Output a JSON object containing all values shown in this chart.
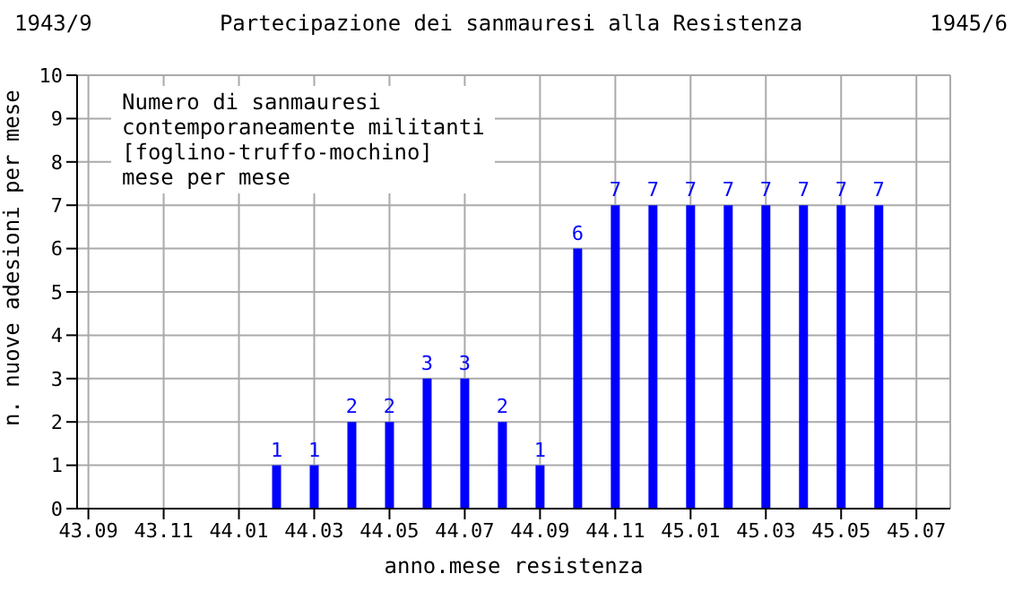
{
  "chart_data": {
    "type": "bar",
    "title": "Partecipazione dei sanmauresi alla Resistenza",
    "xlabel": "anno.mese resistenza",
    "ylabel": "n. nuove adesioni per mese",
    "annotations": [
      "1943/9",
      "1945/6",
      "Numero di sanmauresi\ncontemporaneamente militanti\n[foglino-truffo-mochino]\nmese per mese"
    ],
    "categories": [
      "43.09",
      null,
      "43.11",
      null,
      "44.01",
      null,
      "44.03",
      null,
      "44.05",
      null,
      "44.07",
      null,
      "44.09",
      null,
      "44.11",
      null,
      "45.01",
      null,
      "45.03",
      null,
      "45.05",
      null,
      "45.07"
    ],
    "values": [
      0,
      0,
      0,
      0,
      0,
      1,
      1,
      2,
      2,
      3,
      3,
      2,
      1,
      6,
      7,
      7,
      7,
      7,
      7,
      7,
      7,
      7,
      0
    ],
    "value_labels": [
      null,
      null,
      null,
      null,
      null,
      "1",
      "1",
      "2",
      "2",
      "3",
      "3",
      "2",
      "1",
      "6",
      "7",
      "7",
      "7",
      "7",
      "7",
      "7",
      "7",
      "7",
      null
    ],
    "color": "#0000ff",
    "ylim": [
      0,
      10
    ],
    "yticks": [
      0,
      1,
      2,
      3,
      4,
      5,
      6,
      7,
      8,
      9,
      10
    ],
    "grid": true,
    "legend": false
  }
}
